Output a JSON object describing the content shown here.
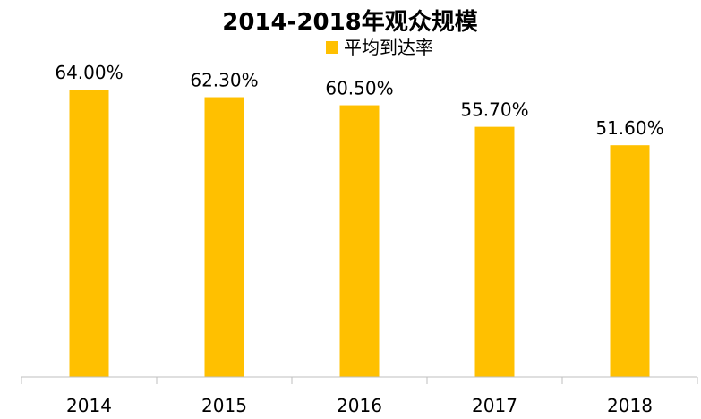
{
  "chart_data": {
    "type": "bar",
    "title": "2014-2018年观众规模",
    "categories": [
      "2014",
      "2015",
      "2016",
      "2017",
      "2018"
    ],
    "series": [
      {
        "name": "平均到达率",
        "values": [
          64.0,
          62.3,
          60.5,
          55.7,
          51.6
        ],
        "labels": [
          "64.00%",
          "62.30%",
          "60.50%",
          "55.70%",
          "51.60%"
        ],
        "color": "#FFC000"
      }
    ],
    "ylim": [
      0,
      70
    ],
    "grid": false,
    "legend_position": "top-center",
    "axis_color": "#BFBFBF"
  }
}
